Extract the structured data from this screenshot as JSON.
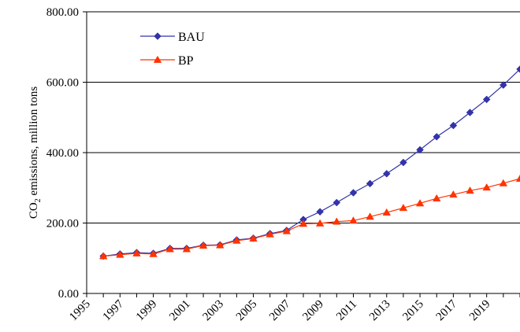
{
  "chart_data": {
    "type": "line",
    "title": "",
    "xlabel": "",
    "ylabel": "CO2 emissions, million tons",
    "ylabel_parts": {
      "pre": "CO",
      "sub": "2",
      "post": " emissions, million tons"
    },
    "ylim": [
      0,
      800
    ],
    "xlim": [
      1995,
      2021
    ],
    "yticks": [
      "0.00",
      "200.00",
      "400.00",
      "600.00",
      "800.00"
    ],
    "xticks": [
      "1995",
      "1997",
      "1999",
      "2001",
      "2003",
      "2005",
      "2007",
      "2009",
      "2011",
      "2013",
      "2015",
      "2017",
      "2019"
    ],
    "grid": "horizontal",
    "legend_position": "top-left",
    "x": [
      1996,
      1997,
      1998,
      1999,
      2000,
      2001,
      2002,
      2003,
      2004,
      2005,
      2006,
      2007,
      2008,
      2009,
      2010,
      2011,
      2012,
      2013,
      2014,
      2015,
      2016,
      2017,
      2018,
      2019,
      2020,
      2021
    ],
    "series": [
      {
        "name": "BAU",
        "color": "#3333aa",
        "marker": "diamond",
        "values": [
          106,
          112,
          116,
          114,
          128,
          128,
          137,
          138,
          152,
          157,
          170,
          179,
          210,
          232,
          258,
          286,
          312,
          340,
          372,
          408,
          445,
          477,
          514,
          551,
          592,
          637
        ]
      },
      {
        "name": "BP",
        "color": "#ff3300",
        "marker": "triangle",
        "values": [
          106,
          110,
          114,
          112,
          126,
          126,
          136,
          137,
          150,
          156,
          168,
          177,
          198,
          199,
          204,
          207,
          218,
          230,
          243,
          256,
          270,
          281,
          292,
          301,
          313,
          326
        ]
      }
    ]
  }
}
